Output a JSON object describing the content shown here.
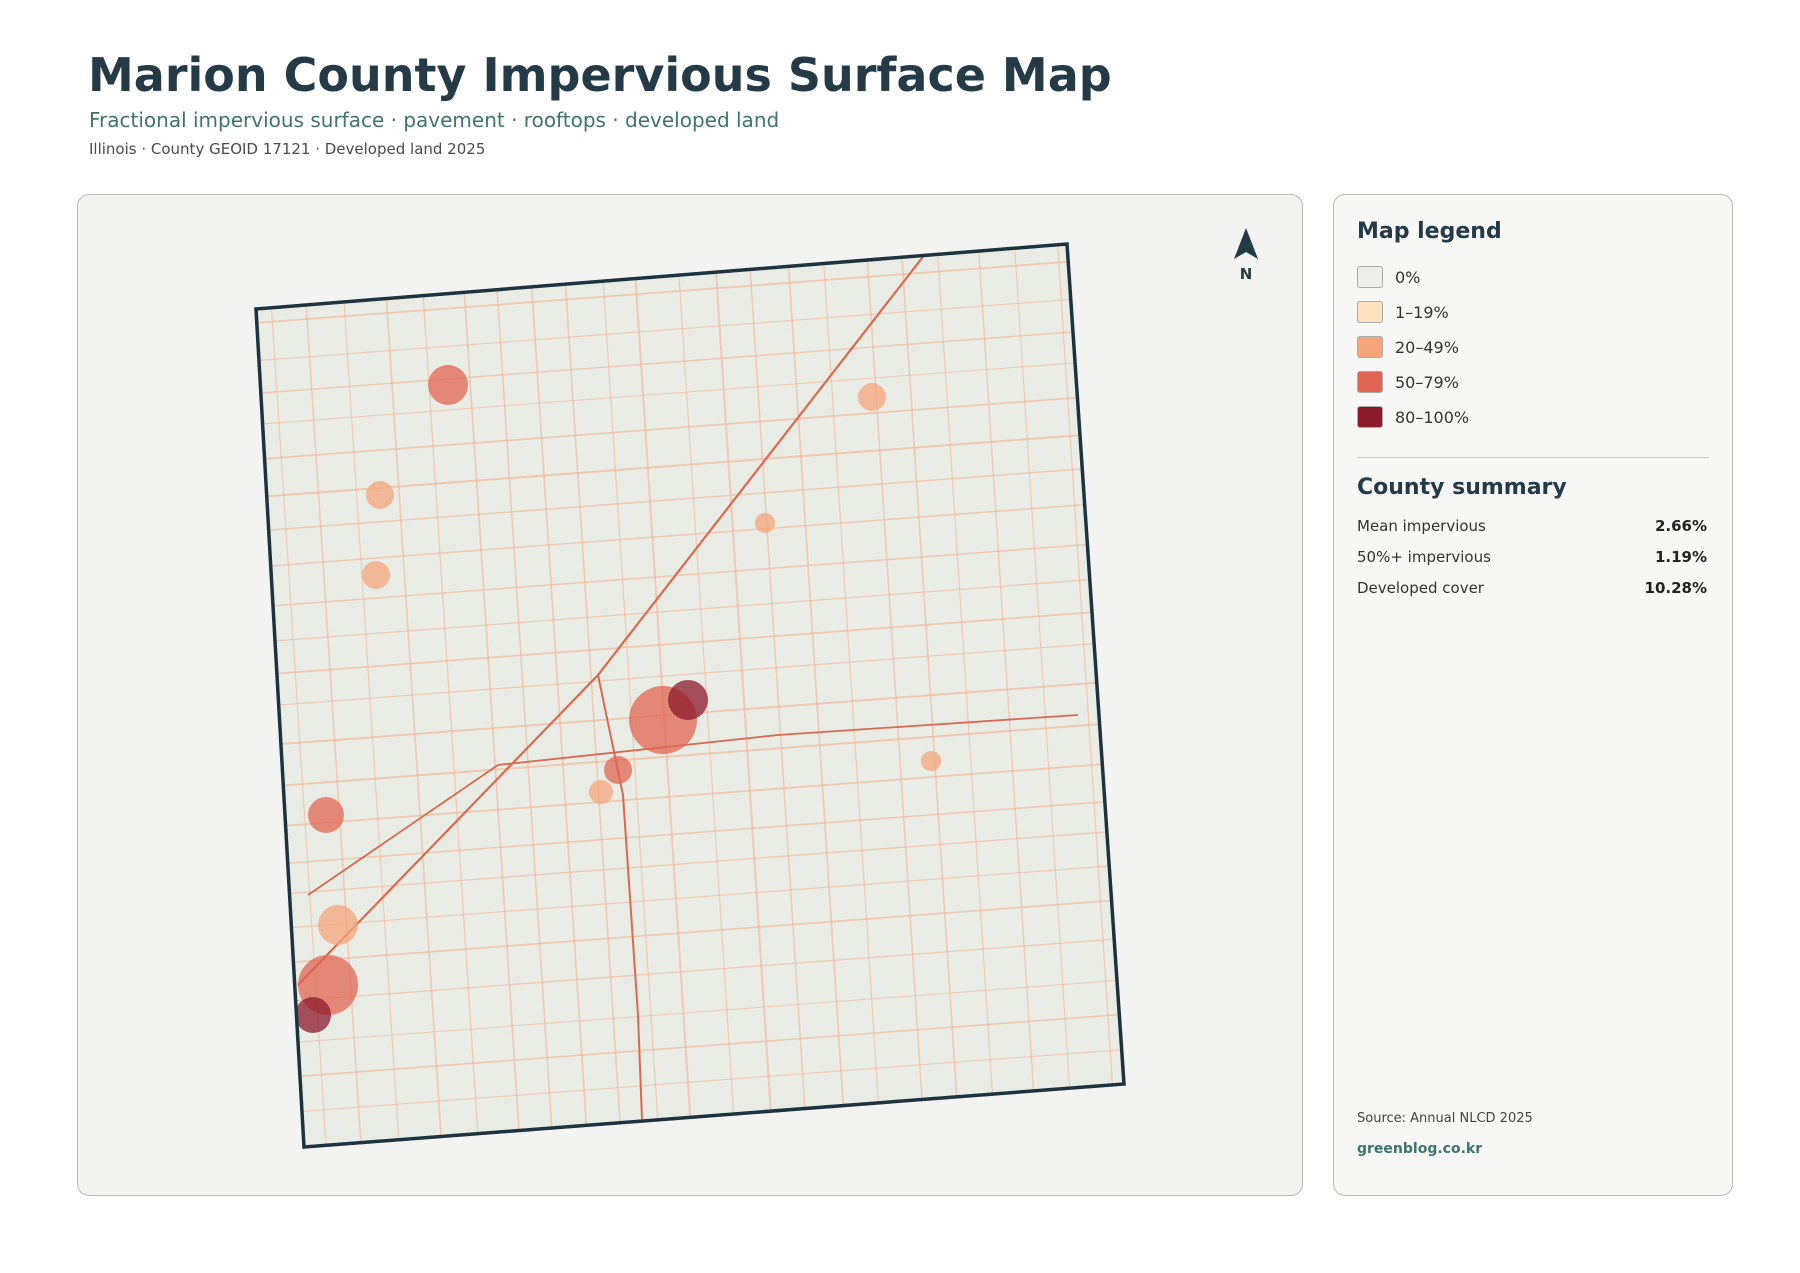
{
  "header": {
    "title": "Marion County Impervious Surface Map",
    "subtitle": "Fractional impervious surface · pavement · rooftops · developed land",
    "meta": "Illinois · County GEOID 17121 · Developed land 2025"
  },
  "map": {
    "north_label": "N"
  },
  "legend": {
    "title": "Map legend",
    "items": [
      {
        "label": "0%",
        "color": "#ededea"
      },
      {
        "label": "1–19%",
        "color": "#fde0c0"
      },
      {
        "label": "20–49%",
        "color": "#f4a57c"
      },
      {
        "label": "50–79%",
        "color": "#e06552"
      },
      {
        "label": "80–100%",
        "color": "#8c1a2c"
      }
    ]
  },
  "summary": {
    "title": "County summary",
    "rows": [
      [
        "Mean impervious",
        "2.66%"
      ],
      [
        "50%+ impervious",
        "1.19%"
      ],
      [
        "Developed cover",
        "10.28%"
      ]
    ]
  },
  "footer": {
    "source": "Source: Annual NLCD 2025",
    "link": "greenblog.co.kr"
  }
}
